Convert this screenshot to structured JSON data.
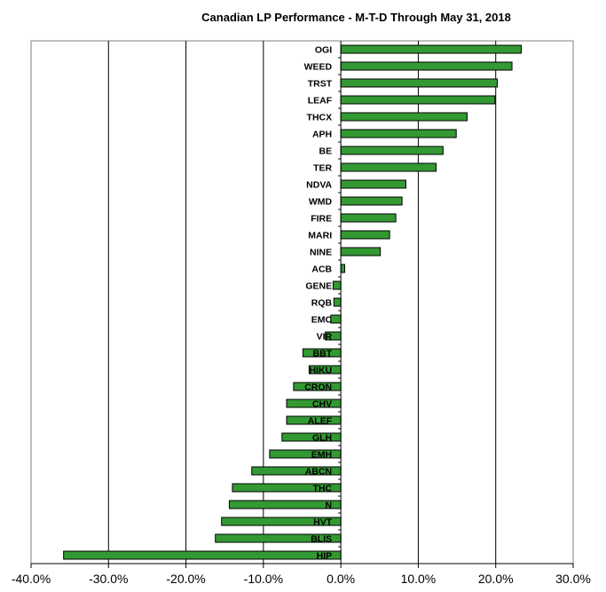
{
  "chart_data": {
    "type": "bar",
    "orientation": "horizontal",
    "title": "Canadian LP Performance -  M-T-D Through May 31, 2018",
    "xlabel": "",
    "ylabel": "",
    "xlim": [
      -0.4,
      0.3
    ],
    "xticks": [
      -0.4,
      -0.3,
      -0.2,
      -0.1,
      0.0,
      0.1,
      0.2,
      0.3
    ],
    "xtick_labels": [
      "-40.0%",
      "-30.0%",
      "-20.0%",
      "-10.0%",
      "0.0%",
      "10.0%",
      "20.0%",
      "30.0%"
    ],
    "grid": "vertical major gridlines",
    "bar_color": "#339933",
    "categories": [
      "OGI",
      "WEED",
      "TRST",
      "LEAF",
      "THCX",
      "APH",
      "BE",
      "TER",
      "NDVA",
      "WMD",
      "FIRE",
      "MARI",
      "NINE",
      "ACB",
      "GENE",
      "RQB",
      "EMC",
      "VIR",
      "BBT",
      "HIKU",
      "CRON",
      "CHV",
      "ALEF",
      "GLH",
      "EMH",
      "ABCN",
      "THC",
      "N",
      "HVT",
      "BLIS",
      "HIP"
    ],
    "values": [
      0.233,
      0.221,
      0.202,
      0.199,
      0.163,
      0.149,
      0.132,
      0.123,
      0.084,
      0.079,
      0.071,
      0.063,
      0.051,
      0.005,
      -0.01,
      -0.009,
      -0.013,
      -0.02,
      -0.049,
      -0.041,
      -0.061,
      -0.07,
      -0.07,
      -0.076,
      -0.092,
      -0.115,
      -0.14,
      -0.144,
      -0.154,
      -0.162,
      -0.358
    ]
  }
}
